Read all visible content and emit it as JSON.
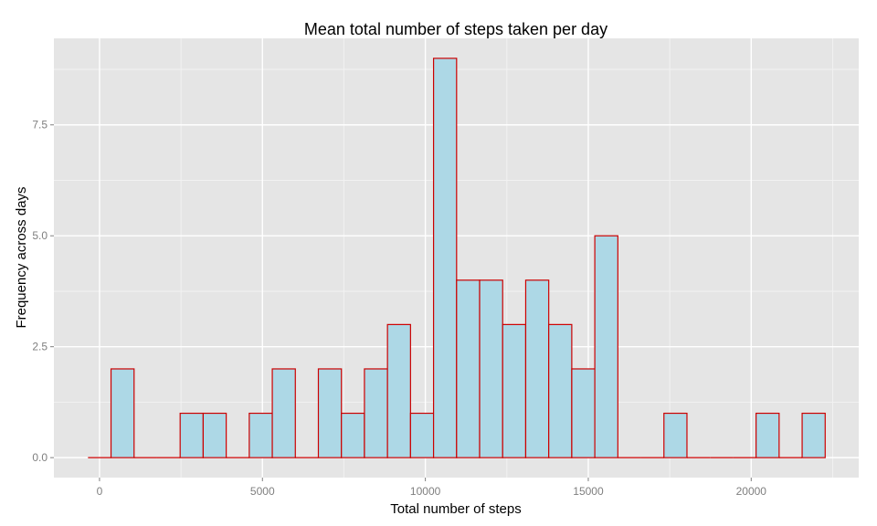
{
  "chart_data": {
    "type": "bar",
    "title": "Mean total number of steps taken per day",
    "xlabel": "Total number of steps",
    "ylabel": "Frequency across days",
    "x_ticks": [
      "0",
      "5000",
      "10000",
      "15000",
      "20000"
    ],
    "y_ticks": [
      "0.0",
      "2.5",
      "5.0",
      "7.5"
    ],
    "xlim": [
      -1400,
      23300
    ],
    "ylim": [
      -0.45,
      9.45
    ],
    "bin_width": 707,
    "bin_centers": [
      0,
      707,
      1414,
      2121,
      2828,
      3535,
      4242,
      4949,
      5656,
      6363,
      7070,
      7777,
      8484,
      9191,
      9898,
      10605,
      11312,
      12019,
      12726,
      13433,
      14140,
      14847,
      15554,
      16261,
      16968,
      17675,
      18382,
      19089,
      19796,
      20503,
      21210,
      21917
    ],
    "values": [
      0,
      2,
      0,
      0,
      1,
      1,
      0,
      1,
      2,
      0,
      2,
      1,
      2,
      3,
      1,
      9,
      4,
      4,
      3,
      4,
      3,
      2,
      5,
      0,
      0,
      1,
      0,
      0,
      0,
      1,
      0,
      1
    ],
    "grid": true,
    "colors": {
      "panel": "#e5e5e5",
      "grid_major": "#ffffff",
      "grid_minor": "#f2f2f2",
      "bar_fill": "#add8e6",
      "bar_outline": "#cc0000"
    }
  }
}
